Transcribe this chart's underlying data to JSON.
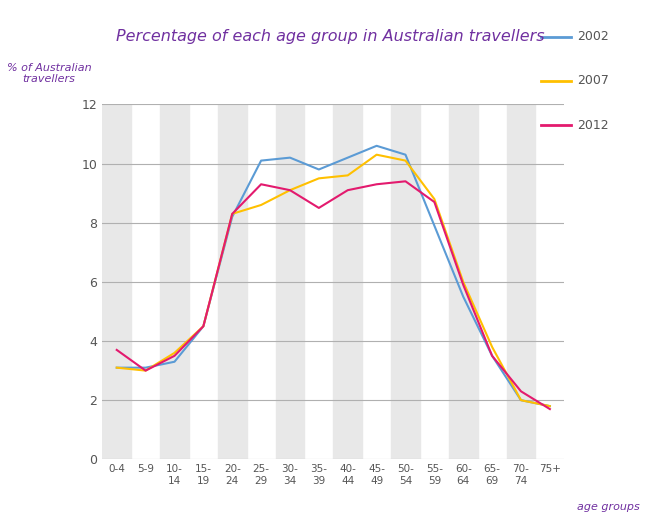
{
  "title": "Percentage of each age group in Australian travellers",
  "ylabel": "% of Australian\ntravellers",
  "xlabel": "age groups",
  "age_groups_tick": [
    "0-4",
    "5-9",
    "10-\n14",
    "15-\n19",
    "20-\n24",
    "25-\n29",
    "30-\n34",
    "35-\n39",
    "40-\n44",
    "45-\n49",
    "50-\n54",
    "55-\n59",
    "60-\n64",
    "65-\n69",
    "70-\n74",
    "75+"
  ],
  "series": {
    "2002": {
      "color": "#5b9bd5",
      "values": [
        3.1,
        3.1,
        3.3,
        4.5,
        8.2,
        10.1,
        10.2,
        9.8,
        10.2,
        10.6,
        10.3,
        7.9,
        5.5,
        3.5,
        2.0,
        1.8
      ]
    },
    "2007": {
      "color": "#ffc000",
      "values": [
        3.1,
        3.0,
        3.6,
        4.5,
        8.3,
        8.6,
        9.1,
        9.5,
        9.6,
        10.3,
        10.1,
        8.8,
        6.0,
        3.8,
        2.0,
        1.8
      ]
    },
    "2012": {
      "color": "#e31a6e",
      "values": [
        3.7,
        3.0,
        3.5,
        4.5,
        8.3,
        9.3,
        9.1,
        8.5,
        9.1,
        9.3,
        9.4,
        8.7,
        5.9,
        3.5,
        2.3,
        1.7
      ]
    }
  },
  "ylim": [
    0,
    12
  ],
  "yticks": [
    0,
    2,
    4,
    6,
    8,
    10,
    12
  ],
  "background_color": "#ffffff",
  "stripe_color": "#e8e8e8",
  "grid_color": "#b0b0b0",
  "title_color": "#7030a0",
  "axis_label_color": "#7030a0",
  "tick_color": "#555555",
  "legend_years": [
    "2002",
    "2007",
    "2012"
  ],
  "legend_colors": [
    "#5b9bd5",
    "#ffc000",
    "#e31a6e"
  ]
}
